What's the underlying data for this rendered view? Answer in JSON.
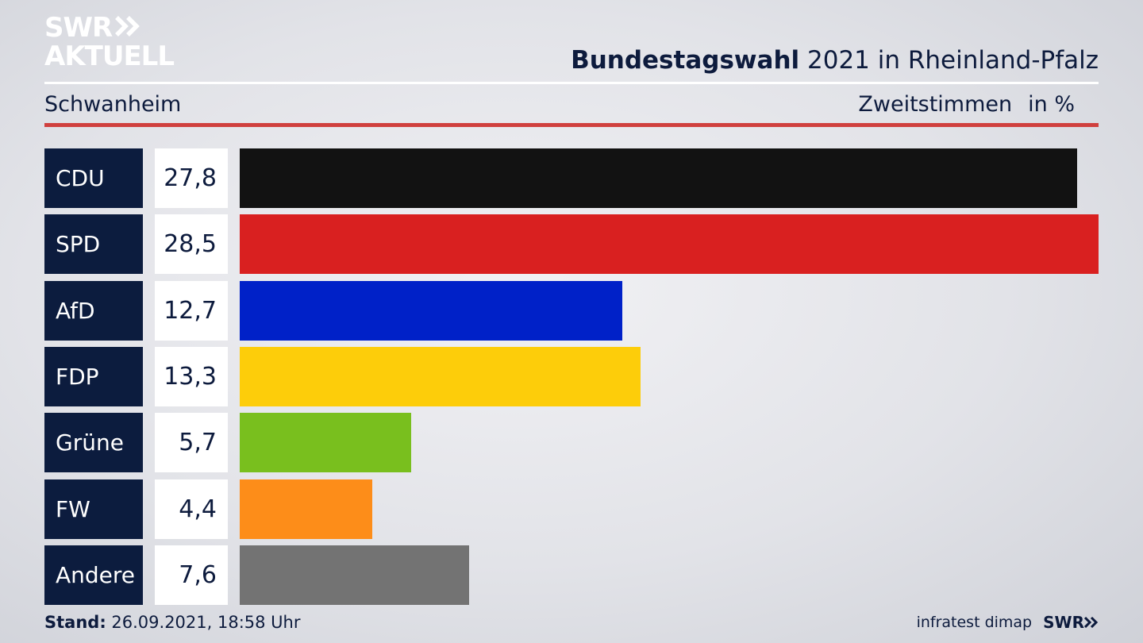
{
  "logo": {
    "line1": "SWR",
    "line2": "AKTUELL"
  },
  "header": {
    "title_bold": "Bundestagswahl",
    "title_rest": " 2021 in Rheinland-Pfalz",
    "region": "Schwanheim",
    "metric": "Zweitstimmen",
    "unit": "in %"
  },
  "chart_data": {
    "type": "bar",
    "orientation": "horizontal",
    "categories": [
      "CDU",
      "SPD",
      "AfD",
      "FDP",
      "Grüne",
      "FW",
      "Andere"
    ],
    "values": [
      27.8,
      28.5,
      12.7,
      13.3,
      5.7,
      4.4,
      7.6
    ],
    "value_labels": [
      "27,8",
      "28,5",
      "12,7",
      "13,3",
      "5,7",
      "4,4",
      "7,6"
    ],
    "colors": [
      "#121212",
      "#d92020",
      "#0021c8",
      "#fdcd0a",
      "#79bf1e",
      "#fd8d19",
      "#737373"
    ],
    "xlim": [
      0,
      28.5
    ]
  },
  "footer": {
    "stand_label": "Stand:",
    "stand_value": " 26.09.2021, 18:58 Uhr",
    "source": "infratest dimap",
    "brand": "SWR"
  }
}
